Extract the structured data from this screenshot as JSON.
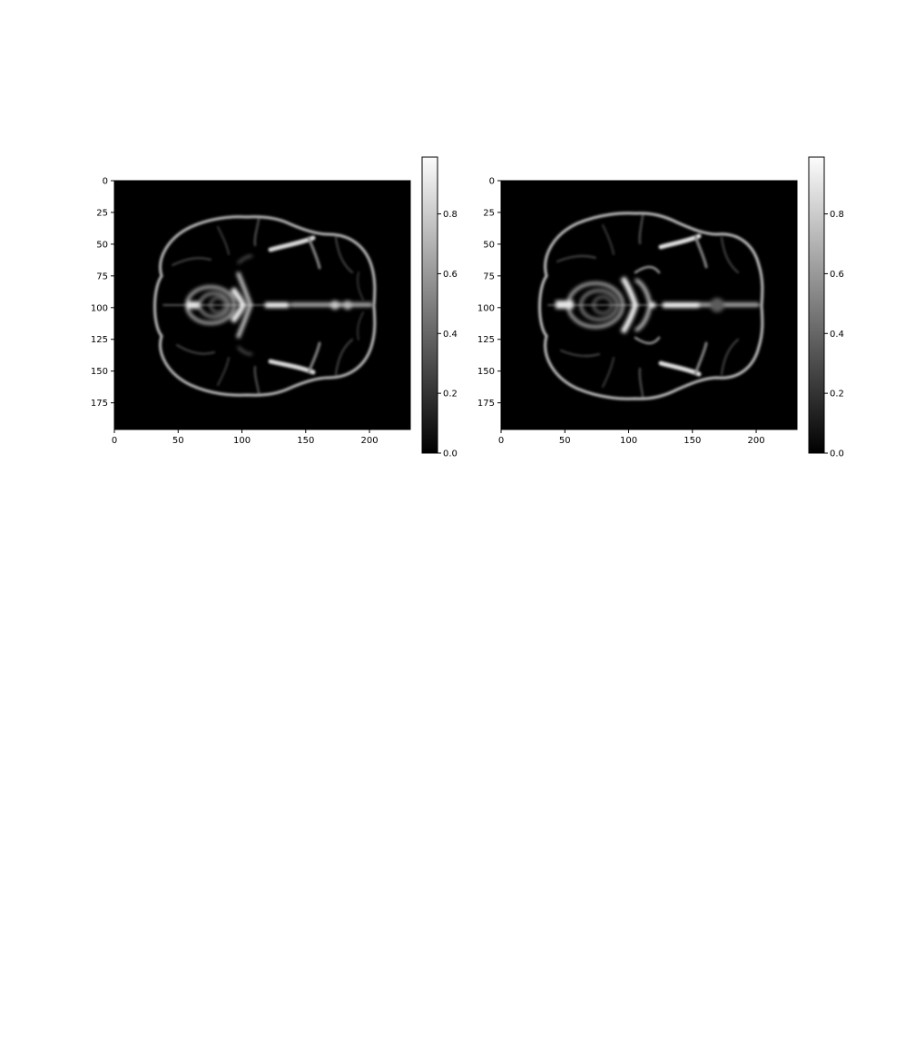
{
  "panels": [
    {
      "image": {
        "colormap": "gray",
        "x_ticks": [
          "0",
          "50",
          "100",
          "150",
          "200"
        ],
        "y_ticks": [
          "0",
          "25",
          "50",
          "75",
          "100",
          "125",
          "150",
          "175"
        ],
        "x_range": [
          0,
          232
        ],
        "y_range": [
          0,
          196
        ]
      },
      "colorbar": {
        "ticks": [
          "0.0",
          "0.2",
          "0.4",
          "0.6",
          "0.8"
        ],
        "range": [
          0,
          0.99
        ]
      }
    },
    {
      "image": {
        "colormap": "gray",
        "x_ticks": [
          "0",
          "50",
          "100",
          "150",
          "200"
        ],
        "y_ticks": [
          "0",
          "25",
          "50",
          "75",
          "100",
          "125",
          "150",
          "175"
        ],
        "x_range": [
          0,
          232
        ],
        "y_range": [
          0,
          196
        ]
      },
      "colorbar": {
        "ticks": [
          "0.0",
          "0.2",
          "0.4",
          "0.6",
          "0.8"
        ],
        "range": [
          0,
          0.99
        ]
      }
    }
  ]
}
